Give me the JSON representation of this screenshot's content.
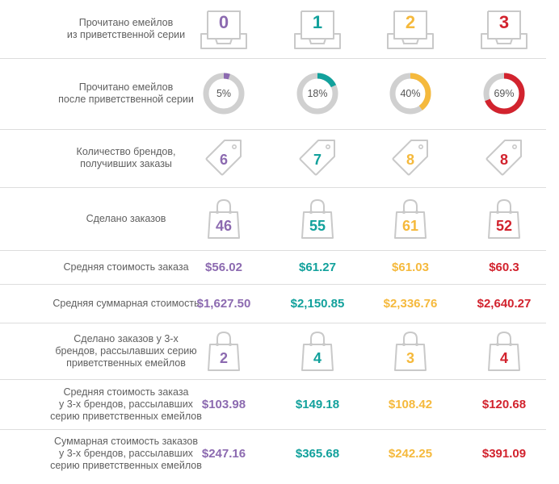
{
  "colors": [
    "#8c6ab0",
    "#12a19c",
    "#f5b93c",
    "#d2232e"
  ],
  "icons": {
    "row0": "inbox-tray-icon",
    "row1": "donut-progress-icon",
    "row2": "price-tag-icon",
    "row3": "shopping-bag-icon",
    "row6": "shopping-bag-icon"
  },
  "chart_data": {
    "type": "table",
    "groups": [
      "0",
      "1",
      "2",
      "3"
    ],
    "rows": [
      {
        "label": "Прочитано емейлов\nиз приветственной серии",
        "values": [
          "0",
          "1",
          "2",
          "3"
        ]
      },
      {
        "label": "Прочитано емейлов\nпосле приветственной серии",
        "values": [
          "5%",
          "18%",
          "40%",
          "69%"
        ],
        "fractions": [
          0.05,
          0.18,
          0.4,
          0.69
        ]
      },
      {
        "label": "Количество брендов,\nполучивших заказы",
        "values": [
          "6",
          "7",
          "8",
          "8"
        ]
      },
      {
        "label": "Сделано заказов",
        "values": [
          "46",
          "55",
          "61",
          "52"
        ]
      },
      {
        "label": "Средняя стоимость заказа",
        "values": [
          "$56.02",
          "$61.27",
          "$61.03",
          "$60.3"
        ]
      },
      {
        "label": "Средняя суммарная стоимость",
        "values": [
          "$1,627.50",
          "$2,150.85",
          "$2,336.76",
          "$2,640.27"
        ]
      },
      {
        "label": "Сделано заказов у 3-х\nбрендов, рассылавших серию\nприветственных емейлов",
        "values": [
          "2",
          "4",
          "3",
          "4"
        ]
      },
      {
        "label": "Средняя стоимость заказа\nу 3-х брендов, рассылавших\nсерию приветственных емейлов",
        "values": [
          "$103.98",
          "$149.18",
          "$108.42",
          "$120.68"
        ]
      },
      {
        "label": "Суммарная стоимость заказов\nу 3-х брендов, рассылавших\nсерию приветственных емейлов",
        "values": [
          "$247.16",
          "$365.68",
          "$242.25",
          "$391.09"
        ]
      }
    ]
  }
}
